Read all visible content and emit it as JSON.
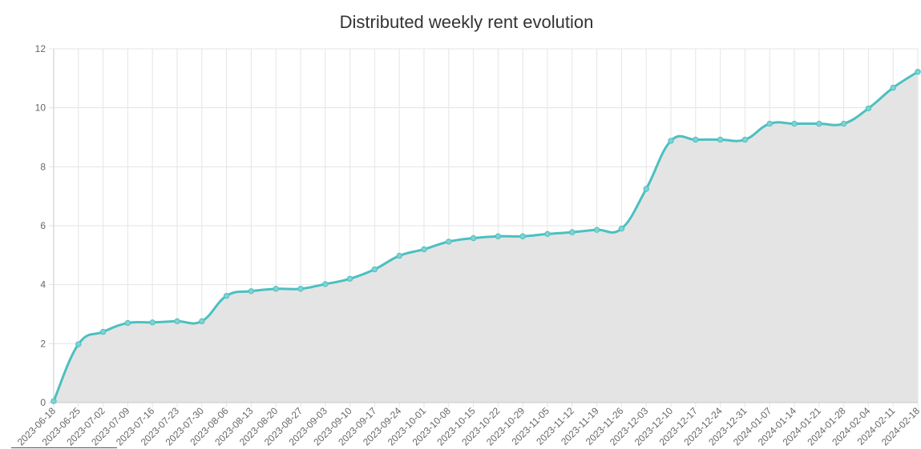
{
  "chart_data": {
    "type": "area",
    "title": "Distributed weekly rent evolution",
    "xlabel": "",
    "ylabel": "",
    "ylim": [
      0,
      12
    ],
    "yticks": [
      0,
      2,
      4,
      6,
      8,
      10,
      12
    ],
    "grid": true,
    "categories": [
      "2023-06-18",
      "2023-06-25",
      "2023-07-02",
      "2023-07-09",
      "2023-07-16",
      "2023-07-23",
      "2023-07-30",
      "2023-08-06",
      "2023-08-13",
      "2023-08-20",
      "2023-08-27",
      "2023-09-03",
      "2023-09-10",
      "2023-09-17",
      "2023-09-24",
      "2023-10-01",
      "2023-10-08",
      "2023-10-15",
      "2023-10-22",
      "2023-10-29",
      "2023-11-05",
      "2023-11-12",
      "2023-11-19",
      "2023-11-26",
      "2023-12-03",
      "2023-12-10",
      "2023-12-17",
      "2023-12-24",
      "2023-12-31",
      "2024-01-07",
      "2024-01-14",
      "2024-01-21",
      "2024-01-28",
      "2024-02-04",
      "2024-02-11",
      "2024-02-18"
    ],
    "series": [
      {
        "name": "Distributed weekly rent",
        "values": [
          0.05,
          1.98,
          2.4,
          2.7,
          2.72,
          2.76,
          2.76,
          3.62,
          3.78,
          3.86,
          3.86,
          4.02,
          4.2,
          4.52,
          4.98,
          5.2,
          5.46,
          5.58,
          5.64,
          5.64,
          5.72,
          5.78,
          5.86,
          5.9,
          7.25,
          8.88,
          8.92,
          8.92,
          8.92,
          9.46,
          9.46,
          9.46,
          9.46,
          9.98,
          10.68,
          11.22
        ],
        "line_color": "#4bc0c0",
        "fill_color": "#e3e3e3"
      }
    ]
  }
}
